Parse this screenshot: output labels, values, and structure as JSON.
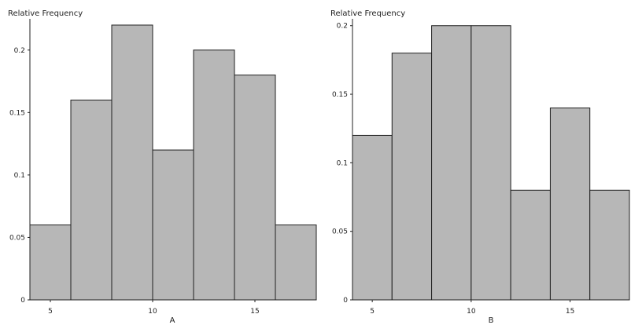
{
  "chart_data": [
    {
      "type": "bar",
      "ylabel": "Relative Frequency",
      "xlabel": "A",
      "bins": [
        {
          "x0": 4,
          "x1": 6,
          "value": 0.06
        },
        {
          "x0": 6,
          "x1": 8,
          "value": 0.16
        },
        {
          "x0": 8,
          "x1": 10,
          "value": 0.22
        },
        {
          "x0": 10,
          "x1": 12,
          "value": 0.12
        },
        {
          "x0": 12,
          "x1": 14,
          "value": 0.2
        },
        {
          "x0": 14,
          "x1": 16,
          "value": 0.18
        },
        {
          "x0": 16,
          "x1": 18,
          "value": 0.06
        }
      ],
      "xlim": [
        4,
        18
      ],
      "ylim": [
        0,
        0.225
      ],
      "x_ticks": [
        5,
        10,
        15
      ],
      "y_ticks": [
        0,
        0.05,
        0.1,
        0.15,
        0.2
      ],
      "y_tick_labels": [
        "0",
        "0.05",
        "0.1",
        "0.15",
        "0.2"
      ],
      "x_tick_labels": [
        "5",
        "10",
        "15"
      ],
      "grid": false,
      "bar_color": "#b7b7b7"
    },
    {
      "type": "bar",
      "ylabel": "Relative Frequency",
      "xlabel": "B",
      "bins": [
        {
          "x0": 4,
          "x1": 6,
          "value": 0.12
        },
        {
          "x0": 6,
          "x1": 8,
          "value": 0.18
        },
        {
          "x0": 8,
          "x1": 10,
          "value": 0.2
        },
        {
          "x0": 10,
          "x1": 12,
          "value": 0.2
        },
        {
          "x0": 12,
          "x1": 14,
          "value": 0.08
        },
        {
          "x0": 14,
          "x1": 16,
          "value": 0.14
        },
        {
          "x0": 16,
          "x1": 18,
          "value": 0.08
        }
      ],
      "xlim": [
        4,
        18
      ],
      "ylim": [
        0,
        0.205
      ],
      "x_ticks": [
        5,
        10,
        15
      ],
      "y_ticks": [
        0,
        0.05,
        0.1,
        0.15,
        0.2
      ],
      "y_tick_labels": [
        "0",
        "0.05",
        "0.1",
        "0.15",
        "0.2"
      ],
      "x_tick_labels": [
        "5",
        "10",
        "15"
      ],
      "grid": false,
      "bar_color": "#b7b7b7"
    }
  ]
}
